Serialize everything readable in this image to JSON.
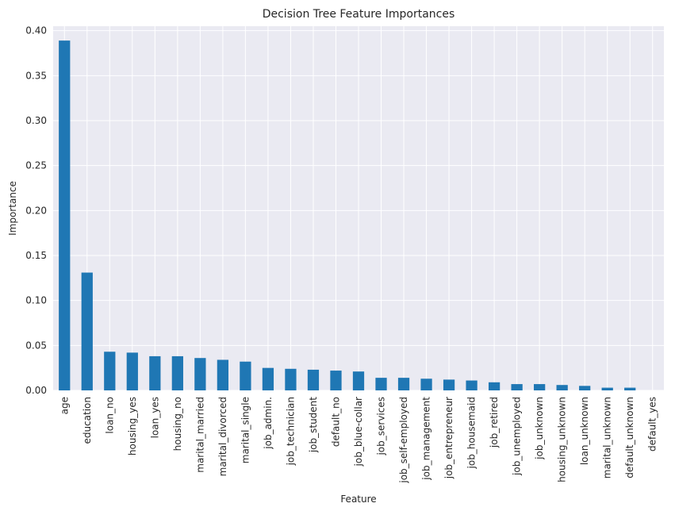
{
  "chart_data": {
    "type": "bar",
    "title": "Decision Tree Feature Importances",
    "xlabel": "Feature",
    "ylabel": "Importance",
    "ylim": [
      0,
      0.405
    ],
    "yticks": [
      "0.00",
      "0.05",
      "0.10",
      "0.15",
      "0.20",
      "0.25",
      "0.30",
      "0.35",
      "0.40"
    ],
    "grid": true,
    "bar_color": "#1f77b4",
    "background_color": "#eaeaf2",
    "categories": [
      "age",
      "education",
      "loan_no",
      "housing_yes",
      "loan_yes",
      "housing_no",
      "marital_married",
      "marital_divorced",
      "marital_single",
      "job_admin.",
      "job_technician",
      "job_student",
      "default_no",
      "job_blue-collar",
      "job_services",
      "job_self-employed",
      "job_management",
      "job_entrepreneur",
      "job_housemaid",
      "job_retired",
      "job_unemployed",
      "job_unknown",
      "housing_unknown",
      "loan_unknown",
      "marital_unknown",
      "default_unknown",
      "default_yes"
    ],
    "values": [
      0.389,
      0.131,
      0.043,
      0.042,
      0.038,
      0.038,
      0.036,
      0.034,
      0.032,
      0.025,
      0.024,
      0.023,
      0.022,
      0.021,
      0.014,
      0.014,
      0.013,
      0.012,
      0.011,
      0.009,
      0.007,
      0.007,
      0.006,
      0.005,
      0.003,
      0.003,
      0.0
    ]
  }
}
